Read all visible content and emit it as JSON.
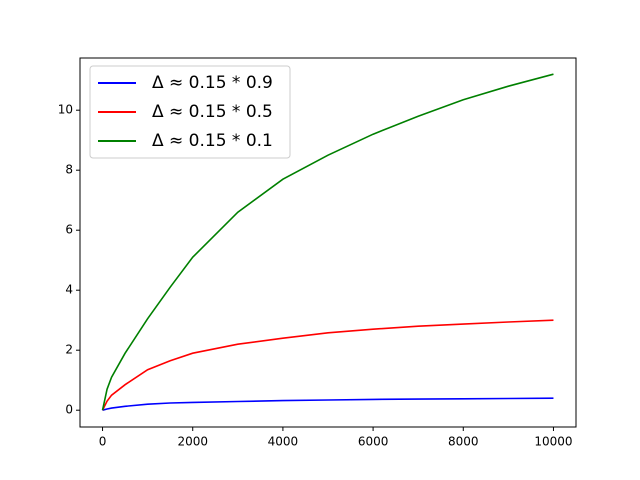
{
  "chart_data": {
    "type": "line",
    "x": [
      0,
      100,
      200,
      500,
      1000,
      1500,
      2000,
      3000,
      4000,
      5000,
      6000,
      7000,
      8000,
      9000,
      10000
    ],
    "series": [
      {
        "name": "Δ ≈ 0.15 * 0.9",
        "color": "#0000ff",
        "values": [
          0,
          0.04,
          0.07,
          0.13,
          0.2,
          0.24,
          0.26,
          0.29,
          0.32,
          0.34,
          0.36,
          0.37,
          0.38,
          0.39,
          0.4
        ]
      },
      {
        "name": "Δ ≈ 0.15 * 0.5",
        "color": "#ff0000",
        "values": [
          0,
          0.3,
          0.5,
          0.85,
          1.35,
          1.65,
          1.9,
          2.2,
          2.4,
          2.58,
          2.7,
          2.8,
          2.87,
          2.94,
          3.0
        ]
      },
      {
        "name": "Δ ≈ 0.15 * 0.1",
        "color": "#008000",
        "values": [
          0,
          0.7,
          1.1,
          1.9,
          3.05,
          4.1,
          5.1,
          6.6,
          7.7,
          8.5,
          9.2,
          9.8,
          10.35,
          10.8,
          11.2
        ]
      }
    ],
    "xlim": [
      -500,
      10500
    ],
    "ylim": [
      -0.56,
      11.74
    ],
    "xticks": [
      0,
      2000,
      4000,
      6000,
      8000,
      10000
    ],
    "yticks": [
      0,
      2,
      4,
      6,
      8,
      10
    ],
    "legend": "upper left",
    "grid": false
  }
}
